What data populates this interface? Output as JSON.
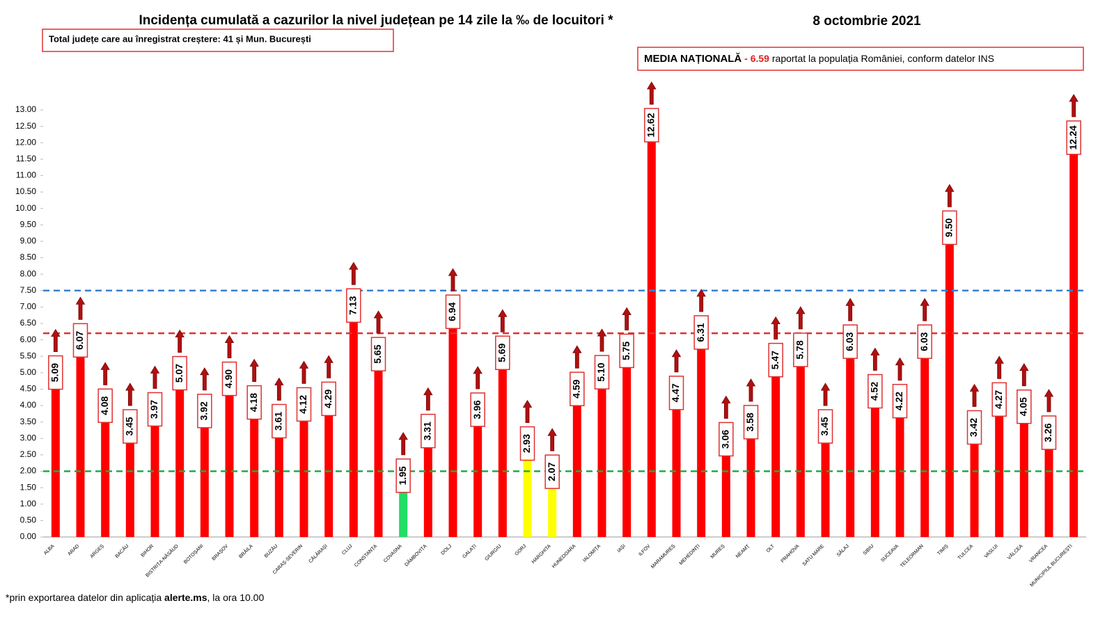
{
  "chart_data": {
    "type": "bar",
    "title": "Incidența cumulată a cazurilor la nivel județean pe 14 zile la ‰ de locuitori *",
    "date": "8 octombrie 2021",
    "note_box": "Total județe care au înregistrat creștere:  41 și Mun. București",
    "national_average": {
      "label": "MEDIA NAȚIONALĂ",
      "value_text": " - 6.59",
      "description": " raportat la populația României, conform datelor INS"
    },
    "footnote": {
      "before": "*prin exportarea datelor din aplicația ",
      "bold": "alerte.ms",
      "after": ", la ora 10.00"
    },
    "categories": [
      "ALBA",
      "ARAD",
      "ARGEȘ",
      "BACĂU",
      "BIHOR",
      "BISTRIȚA-NĂSĂUD",
      "BOTOȘANI",
      "BRAȘOV",
      "BRĂILA",
      "BUZĂU",
      "CARAȘ-SEVERIN",
      "CĂLĂRAȘI",
      "CLUJ",
      "CONSTANȚA",
      "COVASNA",
      "DÂMBOVIȚA",
      "DOLJ",
      "GALAȚI",
      "GIURGIU",
      "GORJ",
      "HARGHITA",
      "HUNEDOARA",
      "IALOMIȚA",
      "IAȘI",
      "ILFOV",
      "MARAMUREȘ",
      "MEHEDINȚI",
      "MUREȘ",
      "NEAMȚ",
      "OLT",
      "PRAHOVA",
      "SATU MARE",
      "SĂLAJ",
      "SIBIU",
      "SUCEAVA",
      "TELEORMAN",
      "TIMIȘ",
      "TULCEA",
      "VASLUI",
      "VÂLCEA",
      "VRANCEA",
      "MUNICIPIUL BUCUREȘTI"
    ],
    "values": [
      5.09,
      6.07,
      4.08,
      3.45,
      3.97,
      5.07,
      3.92,
      4.9,
      4.18,
      3.61,
      4.12,
      4.29,
      7.13,
      5.65,
      1.95,
      3.31,
      6.94,
      3.96,
      5.69,
      2.93,
      2.07,
      4.59,
      5.1,
      5.75,
      12.62,
      4.47,
      6.31,
      3.06,
      3.58,
      5.47,
      5.78,
      3.45,
      6.03,
      4.52,
      4.22,
      6.03,
      9.5,
      3.42,
      4.27,
      4.05,
      3.26,
      12.24
    ],
    "value_labels": [
      "5.09",
      "6.07",
      "4.08",
      "3.45",
      "3.97",
      "5.07",
      "3.92",
      "4.90",
      "4.18",
      "3.61",
      "4.12",
      "4.29",
      "7.13",
      "5.65",
      "1.95",
      "3.31",
      "6.94",
      "3.96",
      "5.69",
      "2.93",
      "2.07",
      "4.59",
      "5.10",
      "5.75",
      "12.62",
      "4.47",
      "6.31",
      "3.06",
      "3.58",
      "5.47",
      "5.78",
      "3.45",
      "6.03",
      "4.52",
      "4.22",
      "6.03",
      "9.50",
      "3.42",
      "4.27",
      "4.05",
      "3.26",
      "12.24"
    ],
    "colors": [
      "#ff0000",
      "#ff0000",
      "#ff0000",
      "#ff0000",
      "#ff0000",
      "#ff0000",
      "#ff0000",
      "#ff0000",
      "#ff0000",
      "#ff0000",
      "#ff0000",
      "#ff0000",
      "#ff0000",
      "#ff0000",
      "#22dd66",
      "#ff0000",
      "#ff0000",
      "#ff0000",
      "#ff0000",
      "#ffff00",
      "#ffff00",
      "#ff0000",
      "#ff0000",
      "#ff0000",
      "#ff0000",
      "#ff0000",
      "#ff0000",
      "#ff0000",
      "#ff0000",
      "#ff0000",
      "#ff0000",
      "#ff0000",
      "#ff0000",
      "#ff0000",
      "#ff0000",
      "#ff0000",
      "#ff0000",
      "#ff0000",
      "#ff0000",
      "#ff0000",
      "#ff0000",
      "#ff0000"
    ],
    "reference_lines": [
      {
        "value": 2,
        "color": "#22aa44"
      },
      {
        "value": 6.2,
        "color": "#e03030"
      },
      {
        "value": 7.5,
        "color": "#3a80d0"
      }
    ],
    "ylim": [
      0,
      13
    ],
    "yticks": [
      {
        "value": 0,
        "label": "0.00"
      },
      {
        "value": 0.5,
        "label": "0.50"
      },
      {
        "value": 1,
        "label": "1.00"
      },
      {
        "value": 1.5,
        "label": "1.50"
      },
      {
        "value": 2,
        "label": "2.00"
      },
      {
        "value": 2.5,
        "label": "2.50"
      },
      {
        "value": 3,
        "label": "3.00"
      },
      {
        "value": 3.5,
        "label": "3.50"
      },
      {
        "value": 4,
        "label": "4.00"
      },
      {
        "value": 4.5,
        "label": "4.50"
      },
      {
        "value": 5,
        "label": "5.00"
      },
      {
        "value": 5.5,
        "label": "5.50"
      },
      {
        "value": 6,
        "label": "6.00"
      },
      {
        "value": 6.5,
        "label": "6.50"
      },
      {
        "value": 7,
        "label": "7.00"
      },
      {
        "value": 7.5,
        "label": "7.50"
      },
      {
        "value": 8,
        "label": "8.00"
      },
      {
        "value": 8.5,
        "label": "8.50"
      },
      {
        "value": 9,
        "label": "9.00"
      },
      {
        "value": 9.5,
        "label": "9.50"
      },
      {
        "value": 10,
        "label": "10.00"
      },
      {
        "value": 10.5,
        "label": "10.50"
      },
      {
        "value": 11,
        "label": "11.00"
      },
      {
        "value": 11.5,
        "label": "11.50"
      },
      {
        "value": 12,
        "label": "12.00"
      },
      {
        "value": 12.5,
        "label": "12.50"
      },
      {
        "value": 13,
        "label": "13.00"
      }
    ]
  }
}
